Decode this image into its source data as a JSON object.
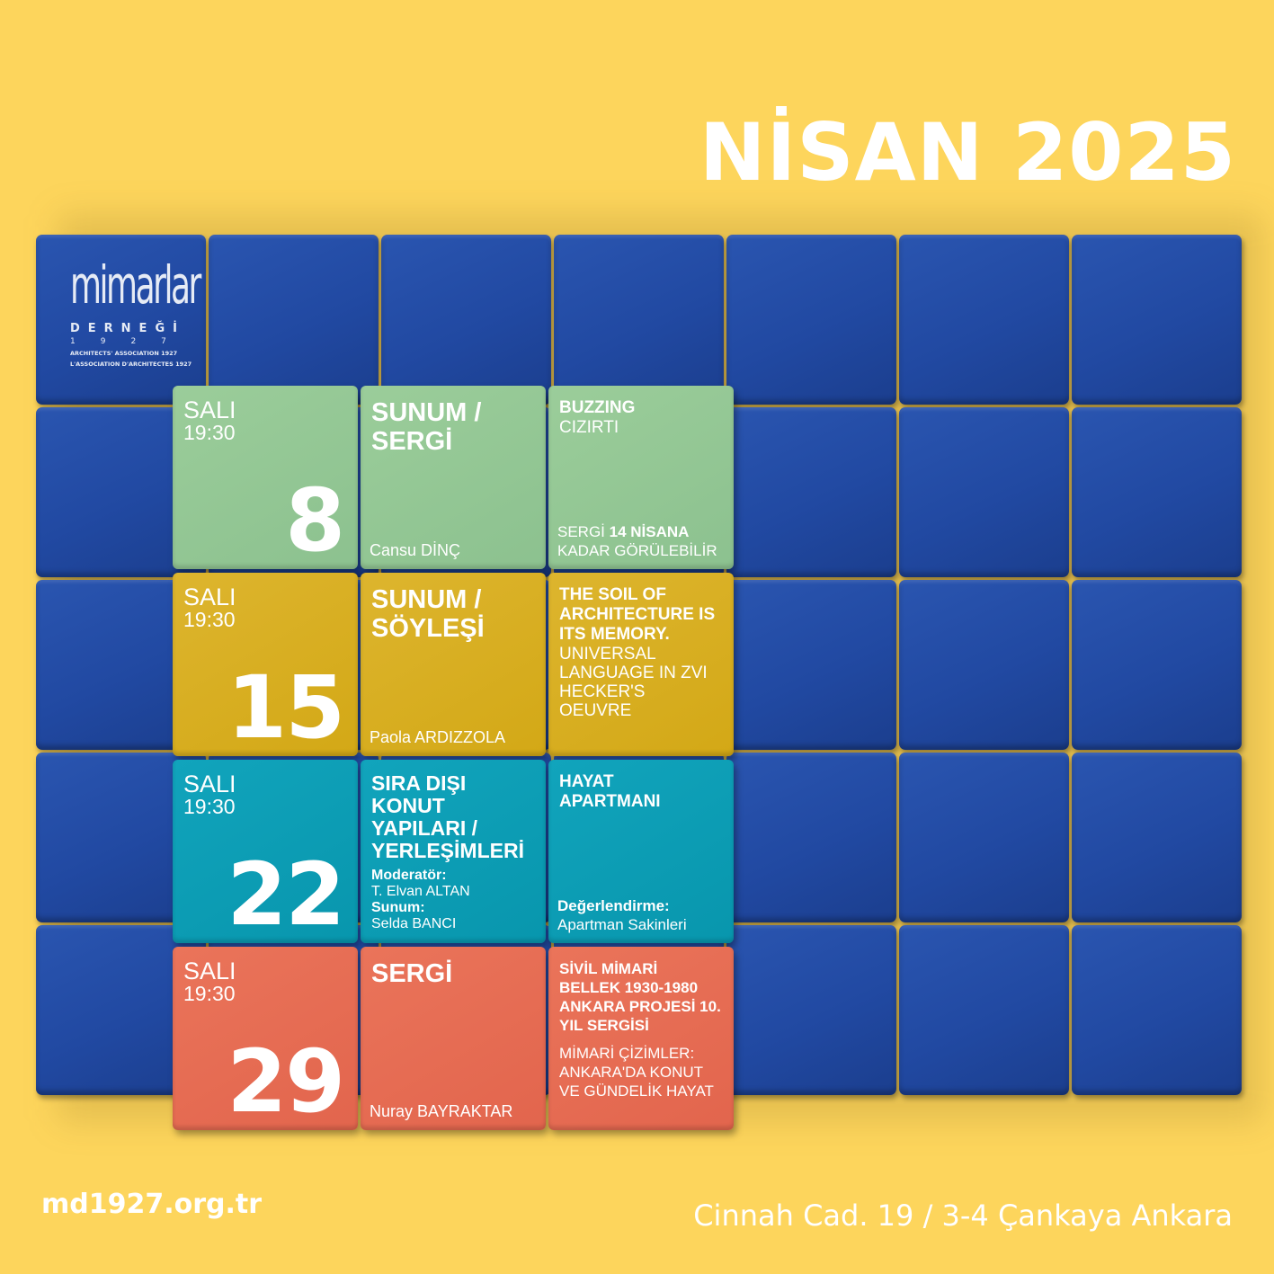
{
  "title": "NİSAN 2025",
  "logo": {
    "word": "mimarlar",
    "org": "DERNEĞİ",
    "year": "1927",
    "assoc_en": "ARCHITECTS' ASSOCIATION 1927",
    "assoc_fr": "L'ASSOCIATION D'ARCHITECTES 1927"
  },
  "colors": {
    "background": "#fdd55c",
    "cube": "#2149a2",
    "green": "#91c592",
    "gold": "#d8ae22",
    "teal": "#0b9bb3",
    "coral": "#e56b52"
  },
  "events": [
    {
      "day": "SALI",
      "time": "19:30",
      "date": "8",
      "type": "SUNUM / SERGİ",
      "person": "Cansu DİNÇ",
      "title": "BUZZING",
      "subtitle": "CIZIRTI",
      "note_a": "SERGİ ",
      "note_b": "14 NİSANA",
      "note_c": "KADAR GÖRÜLEBİLİR"
    },
    {
      "day": "SALI",
      "time": "19:30",
      "date": "15",
      "type": "SUNUM / SÖYLEŞİ",
      "person": "Paola ARDIZZOLA",
      "title": "THE SOIL OF ARCHITECTURE IS ITS MEMORY.",
      "subtitle": "UNIVERSAL LANGUAGE IN ZVI HECKER'S OEUVRE"
    },
    {
      "day": "SALI",
      "time": "19:30",
      "date": "22",
      "type": "SIRA DIŞI KONUT YAPILARI / YERLEŞİMLERİ",
      "moderator_label": "Moderatör:",
      "moderator": "T. Elvan ALTAN",
      "presenter_label": "Sunum:",
      "presenter": "Selda BANCI",
      "title": "HAYAT APARTMANI",
      "review_label": "Değerlendirme:",
      "review": "Apartman Sakinleri"
    },
    {
      "day": "SALI",
      "time": "19:30",
      "date": "29",
      "type": "SERGİ",
      "person": "Nuray BAYRAKTAR",
      "title": "SİVİL MİMARİ BELLEK 1930-1980 ANKARA PROJESİ 10. YIL SERGİSİ",
      "subtitle": "MİMARİ ÇİZİMLER: ANKARA'DA KONUT VE GÜNDELİK HAYAT"
    }
  ],
  "footer": {
    "website": "md1927.org.tr",
    "address": "Cinnah Cad. 19 / 3-4 Çankaya Ankara"
  }
}
